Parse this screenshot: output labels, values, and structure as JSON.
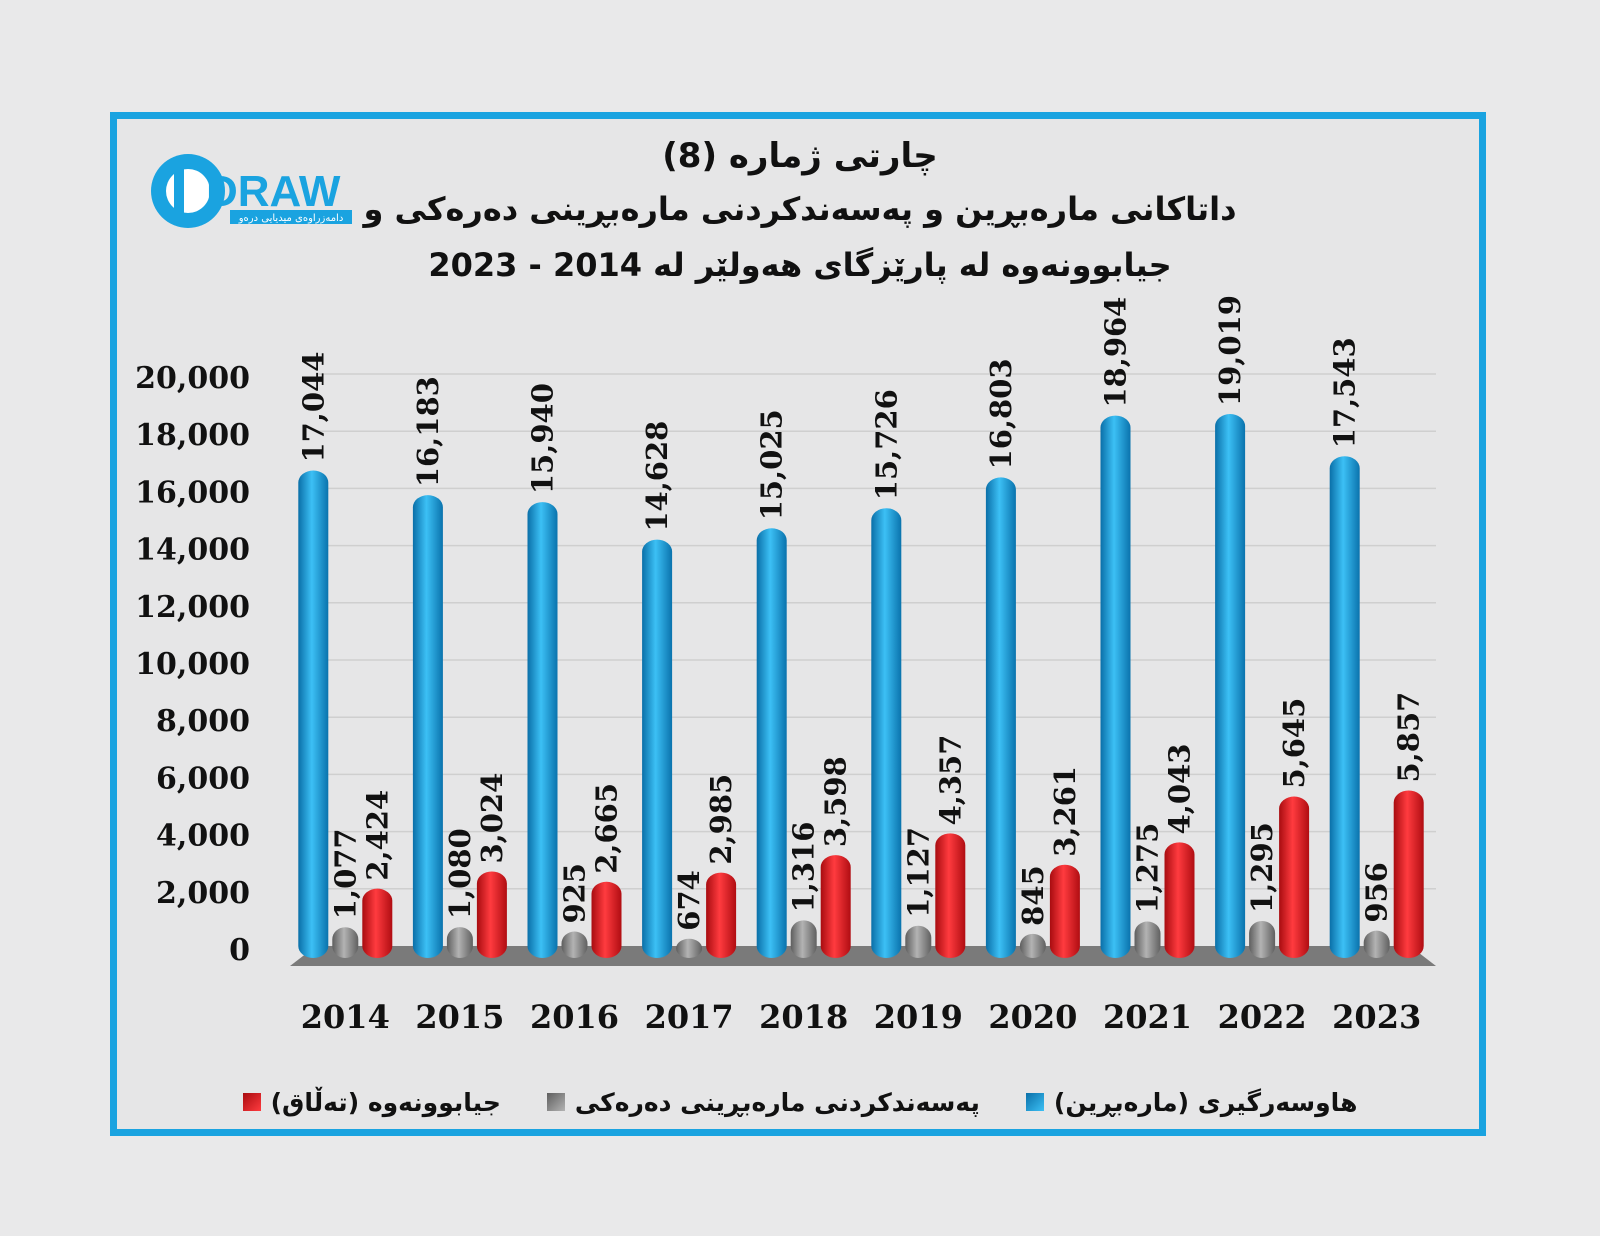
{
  "logo": {
    "main": "DRAW",
    "sub": "دامەزراوەی میدیایی درەو"
  },
  "title": {
    "line1": "چارتی ژمارە (8)",
    "line2": "داتاکانی مارەبڕین و پەسەندکردنی مارەبڕینی دەرەکی و",
    "line3": "جیابوونەوە لە پارێزگای هەولێر لە 2014 - 2023"
  },
  "colors": {
    "marriage": "#1aa3e0",
    "external": "#8c8c8c",
    "divorce": "#e8141b",
    "frame": "#1aa3e0"
  },
  "chart_data": {
    "type": "bar",
    "categories": [
      "2014",
      "2015",
      "2016",
      "2017",
      "2018",
      "2019",
      "2020",
      "2021",
      "2022",
      "2023"
    ],
    "series": [
      {
        "name": "هاوسەرگیری (مارەبڕین)",
        "values": [
          17044,
          16183,
          15940,
          14628,
          15025,
          15726,
          16803,
          18964,
          19019,
          17543
        ],
        "labels": [
          "17,044",
          "16,183",
          "15,940",
          "14,628",
          "15,025",
          "15,726",
          "16,803",
          "18,964",
          "19,019",
          "17,543"
        ]
      },
      {
        "name": "پەسەندکردنی مارەبڕینی دەرەکی",
        "values": [
          1077,
          1080,
          925,
          674,
          1316,
          1127,
          845,
          1275,
          1295,
          956
        ],
        "labels": [
          "1,077",
          "1,080",
          "925",
          "674",
          "1,316",
          "1,127",
          "845",
          "1,275",
          "1,295",
          "956"
        ]
      },
      {
        "name": "جیابوونەوە (تەڵاق)",
        "values": [
          2424,
          3024,
          2665,
          2985,
          3598,
          4357,
          3261,
          4043,
          5645,
          5857
        ],
        "labels": [
          "2,424",
          "3,024",
          "2,665",
          "2,985",
          "3,598",
          "4,357",
          "3,261",
          "4,043",
          "5,645",
          "5,857"
        ]
      }
    ],
    "ylim": [
      0,
      20000
    ],
    "yticks": [
      0,
      2000,
      4000,
      6000,
      8000,
      10000,
      12000,
      14000,
      16000,
      18000,
      20000
    ],
    "ytick_labels": [
      "0",
      "2,000",
      "4,000",
      "6,000",
      "8,000",
      "10,000",
      "12,000",
      "14,000",
      "16,000",
      "18,000",
      "20,000"
    ],
    "grid": true,
    "legend_position": "bottom"
  }
}
